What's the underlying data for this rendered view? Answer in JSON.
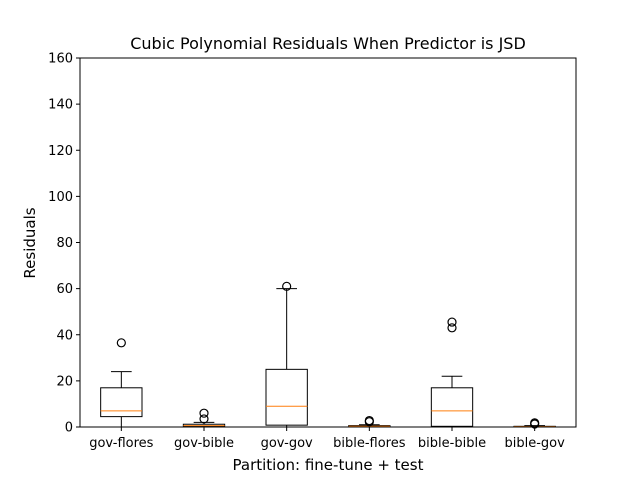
{
  "chart_data": {
    "type": "boxplot",
    "title": "Cubic Polynomial Residuals When Predictor is JSD",
    "xlabel": "Partition: fine-tune + test",
    "ylabel": "Residuals",
    "ylim": [
      0,
      160
    ],
    "yticks": [
      0,
      20,
      40,
      60,
      80,
      100,
      120,
      140,
      160
    ],
    "grid": false,
    "colors": {
      "box": "#000000",
      "median": "#ff7f0e"
    },
    "categories": [
      "gov-flores",
      "gov-bible",
      "gov-gov",
      "bible-flores",
      "bible-bible",
      "bible-gov"
    ],
    "boxes": [
      {
        "label": "gov-flores",
        "whisker_low": 0,
        "q1": 4.5,
        "median": 7,
        "q3": 17,
        "whisker_high": 24,
        "fliers": [
          36.5
        ]
      },
      {
        "label": "gov-bible",
        "whisker_low": 0,
        "q1": 0.2,
        "median": 0.6,
        "q3": 1.2,
        "whisker_high": 2,
        "fliers": [
          3.5,
          6
        ]
      },
      {
        "label": "gov-gov",
        "whisker_low": 0,
        "q1": 0.8,
        "median": 9,
        "q3": 25,
        "whisker_high": 60,
        "fliers": [
          61
        ]
      },
      {
        "label": "bible-flores",
        "whisker_low": 0,
        "q1": 0.1,
        "median": 0.3,
        "q3": 0.6,
        "whisker_high": 1,
        "fliers": [
          2.3,
          2.8
        ]
      },
      {
        "label": "bible-bible",
        "whisker_low": 0,
        "q1": 0.3,
        "median": 7,
        "q3": 17,
        "whisker_high": 22,
        "fliers": [
          43,
          45.5
        ]
      },
      {
        "label": "bible-gov",
        "whisker_low": 0,
        "q1": 0.05,
        "median": 0.15,
        "q3": 0.3,
        "whisker_high": 0.6,
        "fliers": [
          1.3,
          1.8
        ]
      }
    ]
  }
}
